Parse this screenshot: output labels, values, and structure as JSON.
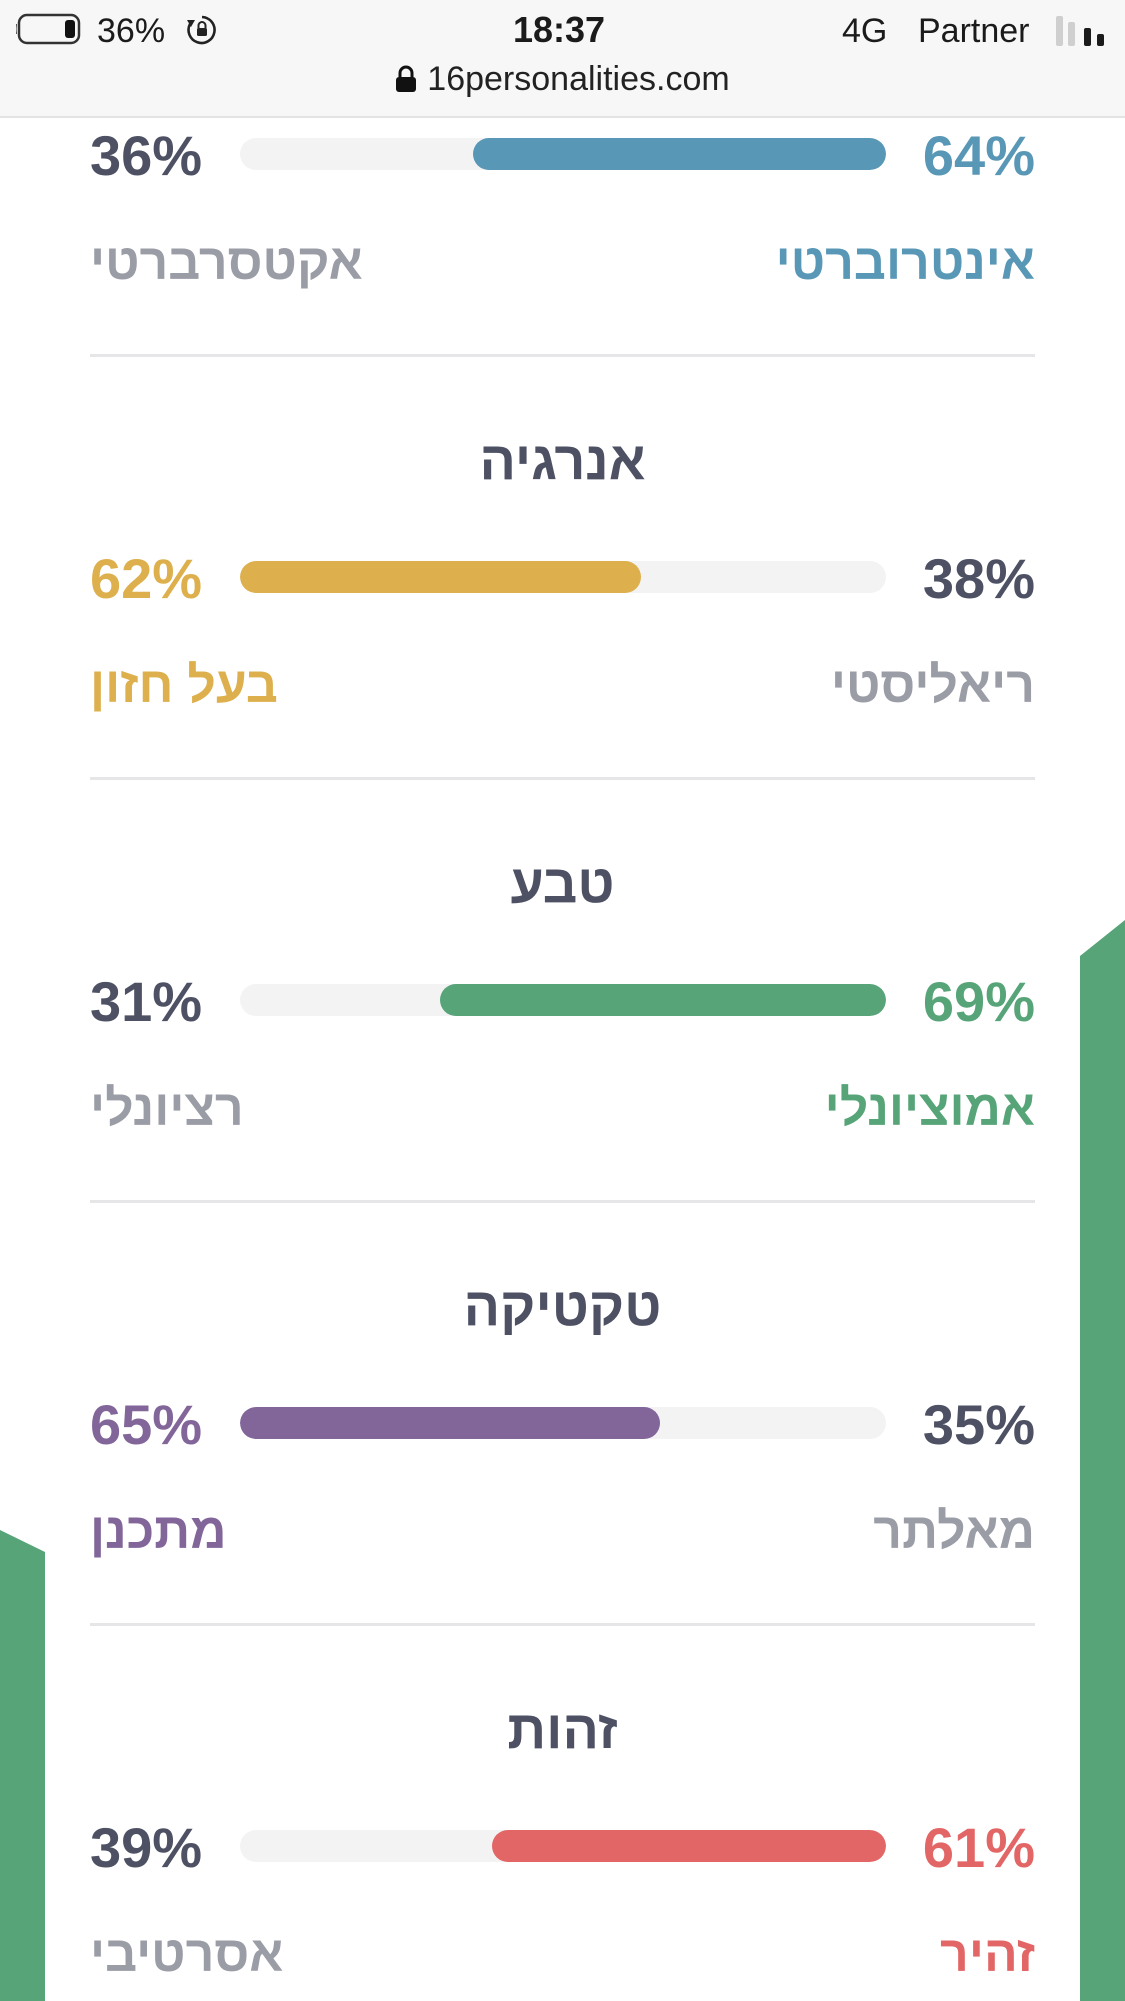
{
  "status_bar": {
    "battery_percent": "36%",
    "time": "18:37",
    "network": "4G",
    "carrier": "Partner",
    "url": "16personalities.com"
  },
  "colors": {
    "muted_text": "#9a9ca6",
    "dark_text": "#4d5163",
    "deco_green": "#56a478"
  },
  "traits": [
    {
      "title": "",
      "left_pct": "36%",
      "right_pct": "64%",
      "left_label": "אקטסרברטי",
      "right_label": "אינטרוברטי",
      "dominant": "right",
      "dominant_value": 0.64,
      "color": "#5897b5"
    },
    {
      "title": "אנרגיה",
      "left_pct": "62%",
      "right_pct": "38%",
      "left_label": "בעל חזון",
      "right_label": "ריאליסטי",
      "dominant": "left",
      "dominant_value": 0.62,
      "color": "#ddb04d"
    },
    {
      "title": "טבע",
      "left_pct": "31%",
      "right_pct": "69%",
      "left_label": "רציונלי",
      "right_label": "אמוציונלי",
      "dominant": "right",
      "dominant_value": 0.69,
      "color": "#56a478"
    },
    {
      "title": "טקטיקה",
      "left_pct": "65%",
      "right_pct": "35%",
      "left_label": "מתכנן",
      "right_label": "מאלתר",
      "dominant": "left",
      "dominant_value": 0.65,
      "color": "#82669a"
    },
    {
      "title": "זהות",
      "left_pct": "39%",
      "right_pct": "61%",
      "left_label": "אסרטיבי",
      "right_label": "זהיר",
      "dominant": "right",
      "dominant_value": 0.61,
      "color": "#e36666"
    }
  ]
}
